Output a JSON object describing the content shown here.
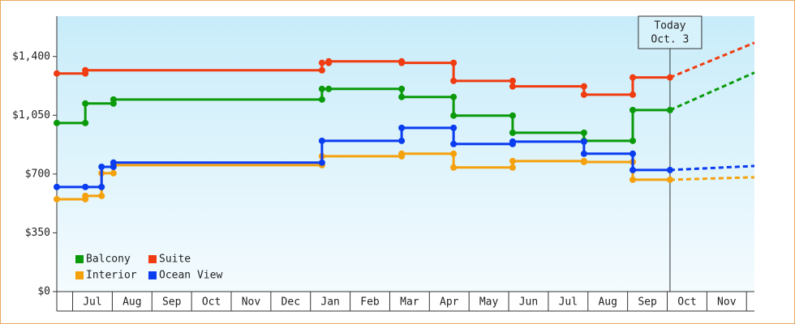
{
  "chart_data": {
    "type": "line",
    "xlim": [
      0.1,
      17.7
    ],
    "ylim": [
      0,
      1640
    ],
    "yticks": [
      {
        "value": 0,
        "label": "$0"
      },
      {
        "value": 350,
        "label": "$350"
      },
      {
        "value": 700,
        "label": "$700"
      },
      {
        "value": 1050,
        "label": "$1,050"
      },
      {
        "value": 1400,
        "label": "$1,400"
      }
    ],
    "xticks": [
      {
        "value": 1,
        "label": "Jul"
      },
      {
        "value": 2,
        "label": "Aug"
      },
      {
        "value": 3,
        "label": "Sep"
      },
      {
        "value": 4,
        "label": "Oct"
      },
      {
        "value": 5,
        "label": "Nov"
      },
      {
        "value": 6,
        "label": "Dec"
      },
      {
        "value": 7,
        "label": "Jan"
      },
      {
        "value": 8,
        "label": "Feb"
      },
      {
        "value": 9,
        "label": "Mar"
      },
      {
        "value": 10,
        "label": "Apr"
      },
      {
        "value": 11,
        "label": "May"
      },
      {
        "value": 12,
        "label": "Jun"
      },
      {
        "value": 13,
        "label": "Jul"
      },
      {
        "value": 14,
        "label": "Aug"
      },
      {
        "value": 15,
        "label": "Sep"
      },
      {
        "value": 16,
        "label": "Oct"
      },
      {
        "value": 17,
        "label": "Nov"
      }
    ],
    "forecast_x": [
      15.57,
      17.7
    ],
    "annotation": {
      "x": 15.57,
      "lines": [
        "Today",
        "Oct. 3"
      ]
    },
    "series": [
      {
        "name": "Balcony",
        "color": "#0a9a0a",
        "x": [
          0.1,
          0.82,
          0.82,
          1.53,
          1.53,
          6.79,
          6.79,
          6.96,
          8.8,
          8.8,
          10.11,
          10.11,
          11.6,
          11.6,
          13.4,
          13.4,
          14.63,
          14.63,
          15.57
        ],
        "values": [
          1004,
          1004,
          1120,
          1120,
          1144,
          1144,
          1207,
          1207,
          1207,
          1159,
          1159,
          1048,
          1048,
          946,
          946,
          898,
          898,
          1081,
          1081
        ],
        "forecast": [
          1081,
          1304
        ]
      },
      {
        "name": "Suite",
        "color": "#f03c10",
        "x": [
          0.1,
          0.82,
          0.82,
          6.79,
          6.79,
          6.96,
          6.96,
          8.8,
          8.8,
          10.11,
          10.11,
          11.6,
          11.6,
          13.4,
          13.4,
          14.63,
          14.63,
          15.57
        ],
        "values": [
          1299,
          1299,
          1318,
          1318,
          1362,
          1362,
          1371,
          1371,
          1362,
          1362,
          1255,
          1255,
          1222,
          1222,
          1173,
          1173,
          1275,
          1275
        ],
        "forecast": [
          1275,
          1482
        ]
      },
      {
        "name": "Interior",
        "color": "#f5a10c",
        "x": [
          0.1,
          0.82,
          0.82,
          1.23,
          1.23,
          1.53,
          1.53,
          6.79,
          6.79,
          8.8,
          8.8,
          10.11,
          10.11,
          11.6,
          11.6,
          13.4,
          13.4,
          14.63,
          14.63,
          15.57
        ],
        "values": [
          550,
          550,
          570,
          570,
          705,
          705,
          753,
          753,
          806,
          806,
          821,
          821,
          739,
          739,
          777,
          777,
          772,
          772,
          666,
          666
        ],
        "forecast": [
          666,
          681
        ]
      },
      {
        "name": "Ocean View",
        "color": "#0a3cf0",
        "x": [
          0.1,
          0.82,
          1.23,
          1.23,
          1.53,
          1.53,
          6.79,
          6.79,
          8.8,
          8.8,
          10.11,
          10.11,
          11.6,
          11.6,
          13.4,
          13.4,
          14.63,
          14.63,
          15.57
        ],
        "values": [
          623,
          623,
          623,
          743,
          743,
          768,
          768,
          898,
          898,
          975,
          975,
          879,
          879,
          893,
          893,
          821,
          821,
          724,
          724
        ],
        "forecast": [
          724,
          748
        ]
      }
    ]
  }
}
